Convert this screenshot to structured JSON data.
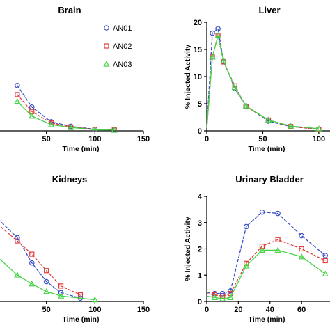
{
  "colors": {
    "AN01": "#3a4fc6",
    "AN02": "#e23a3a",
    "AN03": "#44d444"
  },
  "legend": [
    {
      "key": "AN01",
      "label": "AN01"
    },
    {
      "key": "AN02",
      "label": "AN02"
    },
    {
      "key": "AN03",
      "label": "AN03"
    }
  ],
  "chart_data": [
    {
      "id": "brain",
      "type": "line",
      "title": "Brain",
      "xlabel": "Time (min)",
      "ylabel": "",
      "xlim": [
        0,
        150
      ],
      "ylim": [
        0,
        10
      ],
      "xticks": [
        50,
        100,
        150
      ],
      "yticks": [],
      "legend_position": "top-right",
      "series": [
        {
          "name": "AN01",
          "marker": "circle",
          "x": [
            20,
            35,
            55,
            75,
            100,
            120
          ],
          "y": [
            4.0,
            2.1,
            0.8,
            0.4,
            0.15,
            0.1
          ]
        },
        {
          "name": "AN02",
          "marker": "square",
          "x": [
            20,
            35,
            55,
            75,
            100,
            120
          ],
          "y": [
            3.2,
            1.7,
            0.7,
            0.35,
            0.12,
            0.08
          ]
        },
        {
          "name": "AN03",
          "marker": "triangle",
          "x": [
            20,
            35,
            55,
            75,
            100,
            120
          ],
          "y": [
            2.6,
            1.3,
            0.55,
            0.3,
            0.1,
            0.06
          ]
        }
      ]
    },
    {
      "id": "liver",
      "type": "line",
      "title": "Liver",
      "xlabel": "Time (min)",
      "ylabel": "% Injected  Activity",
      "xlim": [
        0,
        110
      ],
      "ylim": [
        0,
        20
      ],
      "xticks": [
        0,
        50,
        100
      ],
      "yticks": [
        0,
        5,
        10,
        15,
        20
      ],
      "series": [
        {
          "name": "AN01",
          "marker": "circle",
          "x": [
            0,
            5,
            10,
            15,
            25,
            35,
            55,
            75,
            100
          ],
          "y": [
            0.5,
            18.0,
            18.8,
            12.8,
            7.8,
            4.6,
            1.8,
            0.8,
            0.3
          ]
        },
        {
          "name": "AN02",
          "marker": "square",
          "x": [
            0,
            5,
            10,
            15,
            25,
            35,
            55,
            75,
            100
          ],
          "y": [
            0.5,
            13.6,
            17.6,
            12.7,
            8.3,
            4.5,
            2.0,
            0.8,
            0.3
          ]
        },
        {
          "name": "AN03",
          "marker": "triangle",
          "x": [
            0,
            5,
            10,
            15,
            25,
            35,
            55,
            75,
            100
          ],
          "y": [
            0.5,
            13.6,
            17.5,
            12.9,
            8.0,
            4.6,
            2.0,
            0.9,
            0.4
          ]
        }
      ]
    },
    {
      "id": "kidneys",
      "type": "line",
      "title": "Kidneys",
      "xlabel": "Time (min)",
      "ylabel": "",
      "xlim": [
        0,
        150
      ],
      "ylim": [
        0,
        10
      ],
      "xticks": [
        50,
        100,
        150
      ],
      "yticks": [],
      "series": [
        {
          "name": "AN01",
          "marker": "circle",
          "x": [
            0,
            20,
            35,
            50,
            65,
            85
          ],
          "y": [
            7.5,
            5.8,
            3.5,
            1.8,
            0.8,
            0.3
          ]
        },
        {
          "name": "AN02",
          "marker": "square",
          "x": [
            0,
            20,
            35,
            50,
            65,
            85
          ],
          "y": [
            7.0,
            5.5,
            4.3,
            2.8,
            1.4,
            0.6
          ]
        },
        {
          "name": "AN03",
          "marker": "triangle",
          "x": [
            0,
            20,
            35,
            50,
            65,
            100
          ],
          "y": [
            4.0,
            2.4,
            1.6,
            0.9,
            0.5,
            0.15
          ]
        }
      ]
    },
    {
      "id": "bladder",
      "type": "line",
      "title": "Urinary Bladder",
      "xlabel": "Time (min)",
      "ylabel": "% Injected  Activity",
      "xlim": [
        0,
        75
      ],
      "ylim": [
        0,
        4
      ],
      "xticks": [
        0,
        20,
        40,
        60
      ],
      "yticks": [
        0,
        1,
        2,
        3,
        4
      ],
      "series": [
        {
          "name": "AN01",
          "marker": "circle",
          "x": [
            0,
            5,
            10,
            15,
            25,
            35,
            45,
            60,
            75
          ],
          "y": [
            0.35,
            0.3,
            0.3,
            0.4,
            2.85,
            3.4,
            3.35,
            2.5,
            1.75
          ]
        },
        {
          "name": "AN02",
          "marker": "square",
          "x": [
            0,
            5,
            10,
            15,
            25,
            35,
            45,
            60,
            75
          ],
          "y": [
            0.3,
            0.25,
            0.2,
            0.3,
            1.45,
            2.1,
            2.35,
            2.0,
            1.55
          ]
        },
        {
          "name": "AN03",
          "marker": "triangle",
          "x": [
            0,
            5,
            10,
            15,
            25,
            35,
            45,
            60,
            75
          ],
          "y": [
            0.2,
            0.15,
            0.1,
            0.15,
            1.35,
            1.95,
            1.95,
            1.7,
            1.05
          ]
        }
      ]
    }
  ]
}
